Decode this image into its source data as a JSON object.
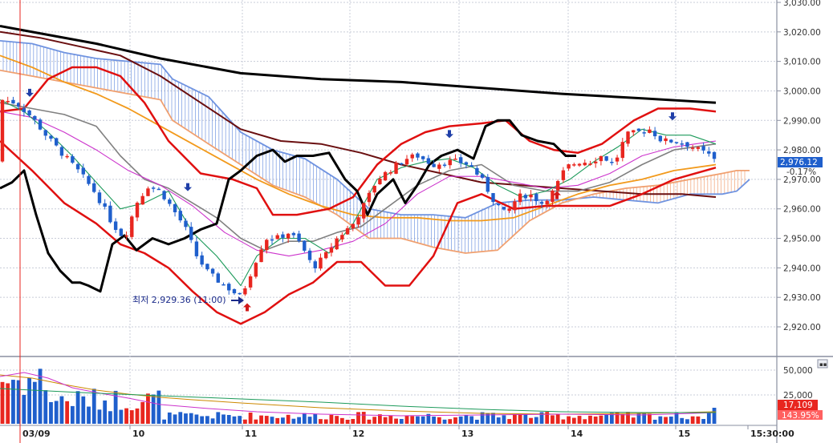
{
  "chart_data": {
    "type": "candlestick",
    "title": "",
    "xlabel": "",
    "ylabel": "",
    "ylim": [
      2910,
      3030
    ],
    "y_ticks": [
      "3,030.00",
      "3,020.00",
      "3,010.00",
      "3,000.00",
      "2,990.00",
      "2,980.00",
      "2,970.00",
      "2,960.00",
      "2,950.00",
      "2,940.00",
      "2,930.00",
      "2,920.00"
    ],
    "x_ticks": [
      "03/09",
      "10",
      "11",
      "12",
      "13",
      "14",
      "15",
      "15:30:00"
    ],
    "annotation_low": "최저 2,929.36 (11:00)",
    "last_price_tag": "2,976.12",
    "last_change_tag": "-0.17%",
    "volume_ticks": [
      "50,000",
      "25,000"
    ],
    "volume_tag": "17,109",
    "volume_ratio_tag": "143.95%",
    "grid": true,
    "colors": {
      "up": "#e8261f",
      "down": "#1f5fcc",
      "black_line": "#000000",
      "dark_red_line": "#6a0f10",
      "red_band": "#e01010",
      "orange_ma": "#f29a1c",
      "gray_ma": "#808080",
      "green_ma": "#1c9a5a",
      "magenta_ma": "#cc33cc",
      "cloud_blue": "#6f93e0",
      "cloud_orange": "#f0a070",
      "grid": "#c8ccd8"
    }
  }
}
